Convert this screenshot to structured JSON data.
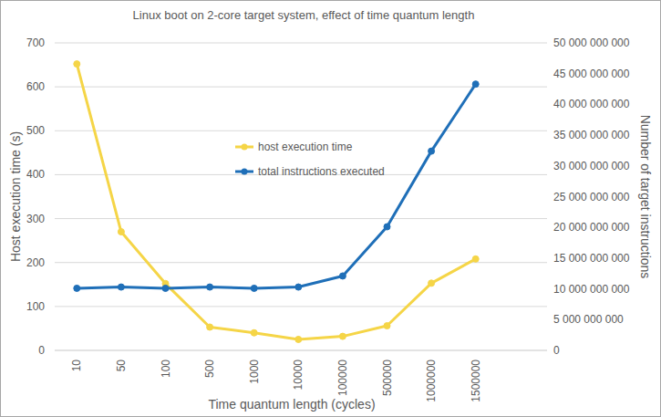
{
  "chart_data": {
    "type": "line",
    "title": "Linux boot on 2-core target system, effect of time quantum length",
    "x_label": "Time quantum length (cycles)",
    "y_label": "Host execution time (s)",
    "y2_label": "Number of target instructions",
    "categories": [
      "10",
      "50",
      "100",
      "500",
      "1000",
      "10000",
      "100000",
      "500000",
      "1000000",
      "1500000"
    ],
    "series": [
      {
        "name": "host execution time",
        "color": "#f5d547",
        "marker": "circle",
        "values": [
          652,
          270,
          152,
          53,
          40,
          25,
          32,
          56,
          153,
          208
        ]
      },
      {
        "name": "total instructions executed",
        "color": "#1f6fb8",
        "marker": "circle",
        "axis": "y2",
        "values": [
          10100000000,
          10300000000,
          10100000000,
          10300000000,
          10100000000,
          10300000000,
          12100000000,
          20100000000,
          32400000000,
          43300000000
        ]
      }
    ],
    "ylim": [
      0,
      700
    ],
    "yticks": [
      0,
      100,
      200,
      300,
      400,
      500,
      600,
      700
    ],
    "y2lim": [
      0,
      50000000000
    ],
    "y2ticks": [
      0,
      {
        "value": 5000000000,
        "label": "5 000 000 000"
      },
      {
        "value": 10000000000,
        "label": "10 000 000 000"
      },
      {
        "value": 15000000000,
        "label": "15 000 000 000"
      },
      {
        "value": 20000000000,
        "label": "20 000 000 000"
      },
      {
        "value": 25000000000,
        "label": "25 000 000 000"
      },
      {
        "value": 30000000000,
        "label": "30 000 000 000"
      },
      {
        "value": 35000000000,
        "label": "35 000 000 000"
      },
      {
        "value": 40000000000,
        "label": "40 000 000 000"
      },
      {
        "value": 45000000000,
        "label": "45 000 000 000"
      },
      {
        "value": 50000000000,
        "label": "50 000 000 000"
      }
    ],
    "grid": true,
    "legend": "center"
  }
}
